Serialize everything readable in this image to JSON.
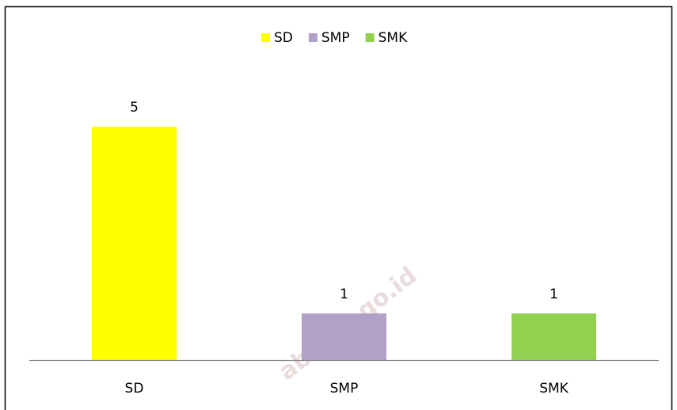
{
  "chart_data": {
    "type": "bar",
    "categories": [
      "SD",
      "SMP",
      "SMK"
    ],
    "values": [
      5,
      1,
      1
    ],
    "colors": [
      "#ffff00",
      "#b2a1c7",
      "#92d050"
    ],
    "legend": "top",
    "watermark": "ab.bps.go.id"
  }
}
